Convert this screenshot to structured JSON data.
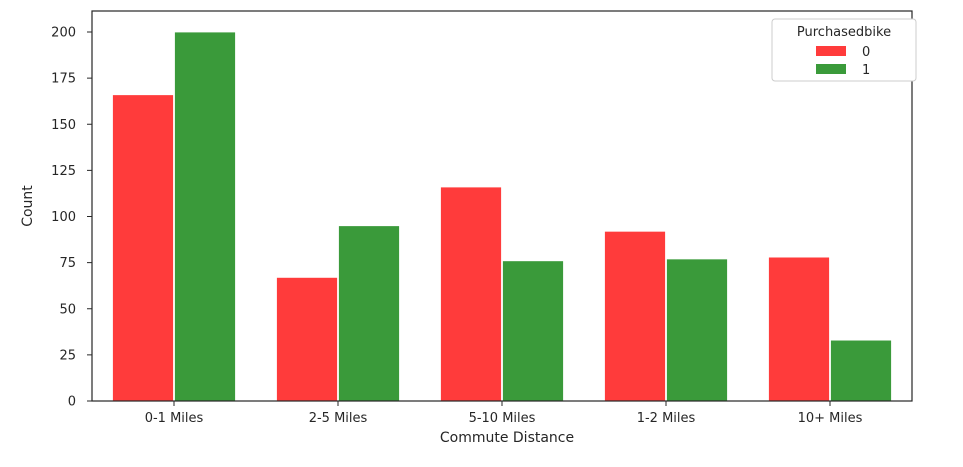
{
  "chart_data": {
    "type": "bar",
    "title": "",
    "xlabel": "Commute Distance",
    "ylabel": "Count",
    "categories": [
      "0-1 Miles",
      "2-5 Miles",
      "5-10 Miles",
      "1-2 Miles",
      "10+ Miles"
    ],
    "series": [
      {
        "name": "0",
        "values": [
          166,
          67,
          116,
          92,
          78
        ],
        "color": "#ff3b3b"
      },
      {
        "name": "1",
        "values": [
          200,
          95,
          76,
          77,
          33
        ],
        "color": "#3a9a3a"
      }
    ],
    "ylim": [
      0,
      210
    ],
    "yticks": [
      0,
      25,
      50,
      75,
      100,
      125,
      150,
      175,
      200
    ],
    "grid": false,
    "legend": {
      "title": "Purchasedbike",
      "placement": "top-right"
    }
  }
}
